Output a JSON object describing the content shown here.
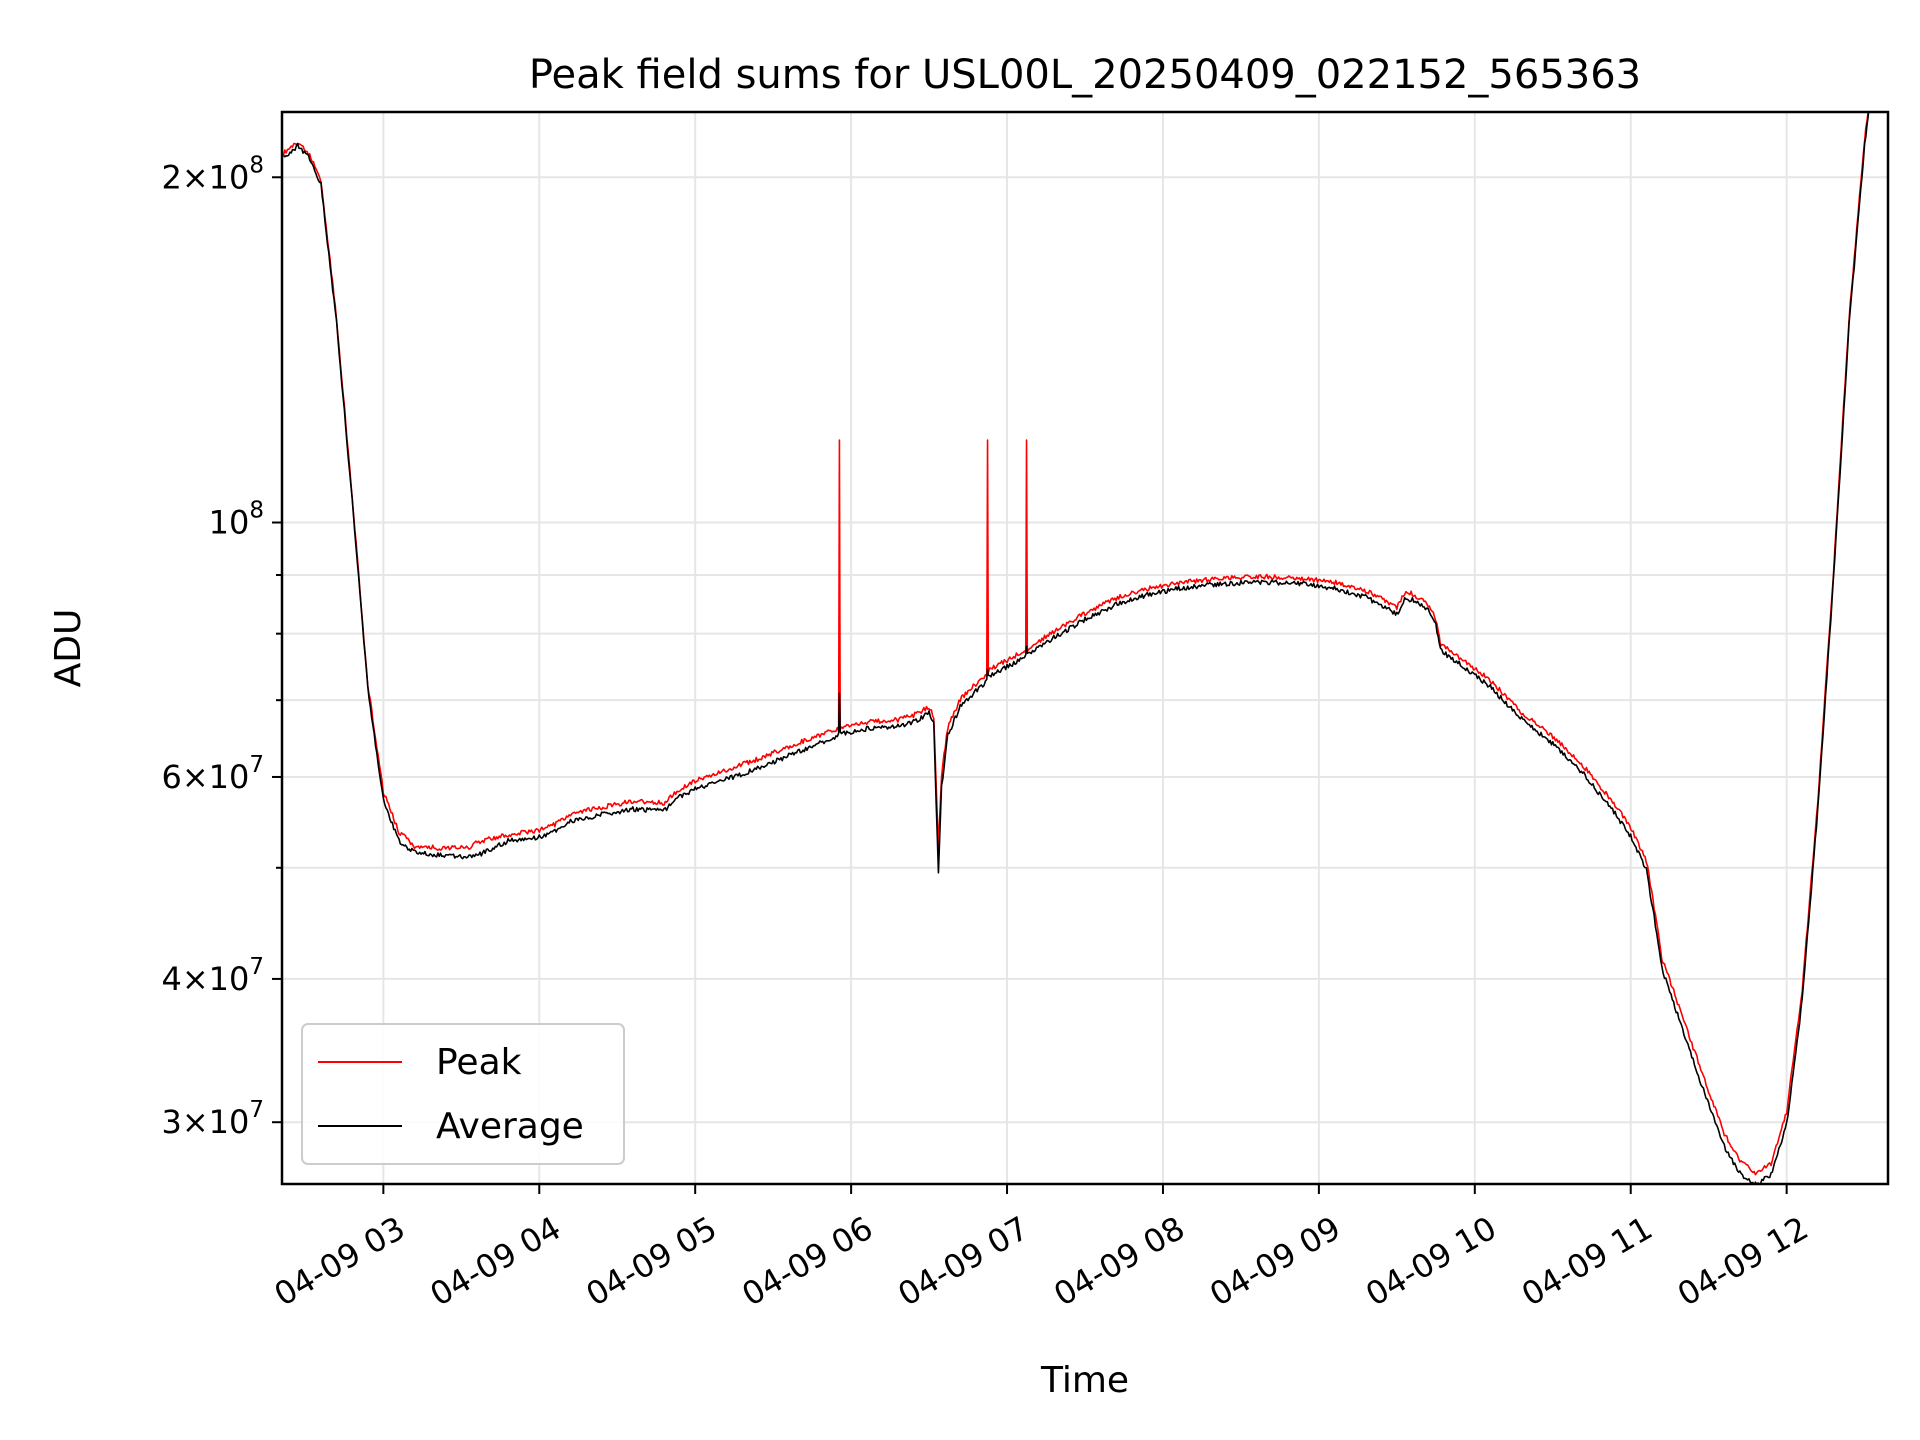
{
  "chart_data": {
    "type": "line",
    "title": "Peak field sums for USL00L_20250409_022152_565363",
    "xlabel": "Time",
    "ylabel": "ADU",
    "yscale": "log",
    "grid": true,
    "legend_position": "lower-left",
    "xlim": [
      2.35,
      12.65
    ],
    "ylim": [
      26500000,
      228000000
    ],
    "x_ticks": [
      {
        "value": 3,
        "label": "04-09 03"
      },
      {
        "value": 4,
        "label": "04-09 04"
      },
      {
        "value": 5,
        "label": "04-09 05"
      },
      {
        "value": 6,
        "label": "04-09 06"
      },
      {
        "value": 7,
        "label": "04-09 07"
      },
      {
        "value": 8,
        "label": "04-09 08"
      },
      {
        "value": 9,
        "label": "04-09 09"
      },
      {
        "value": 10,
        "label": "04-09 10"
      },
      {
        "value": 11,
        "label": "04-09 11"
      },
      {
        "value": 12,
        "label": "04-09 12"
      }
    ],
    "y_major_ticks": [
      {
        "value": 30000000,
        "mant": "3",
        "exp": "7"
      },
      {
        "value": 40000000,
        "mant": "4",
        "exp": "7"
      },
      {
        "value": 60000000,
        "mant": "6",
        "exp": "7"
      },
      {
        "value": 100000000,
        "mant": "",
        "exp": "8"
      },
      {
        "value": 200000000,
        "mant": "2",
        "exp": "8"
      }
    ],
    "y_minor_ticks": [
      50000000,
      70000000,
      80000000,
      90000000
    ],
    "series": [
      {
        "name": "Peak",
        "color": "#ff0000",
        "points": [
          [
            2.36,
            209000000
          ],
          [
            2.45,
            214000000
          ],
          [
            2.52,
            209000000
          ],
          [
            2.6,
            198000000
          ],
          [
            2.7,
            150000000
          ],
          [
            2.8,
            105000000
          ],
          [
            2.9,
            72000000
          ],
          [
            3.0,
            58000000
          ],
          [
            3.1,
            53500000
          ],
          [
            3.2,
            52000000
          ],
          [
            3.35,
            51800000
          ],
          [
            3.55,
            51900000
          ],
          [
            3.62,
            52500000
          ],
          [
            3.8,
            53200000
          ],
          [
            4.0,
            53700000
          ],
          [
            4.1,
            54300000
          ],
          [
            4.2,
            55500000
          ],
          [
            4.4,
            56200000
          ],
          [
            4.6,
            56900000
          ],
          [
            4.8,
            56700000
          ],
          [
            4.9,
            58300000
          ],
          [
            5.0,
            59300000
          ],
          [
            5.2,
            60600000
          ],
          [
            5.4,
            61900000
          ],
          [
            5.6,
            63500000
          ],
          [
            5.8,
            65000000
          ],
          [
            5.92,
            65800000
          ],
          [
            5.925,
            118000000
          ],
          [
            5.93,
            66000000
          ],
          [
            6.1,
            66700000
          ],
          [
            6.3,
            67000000
          ],
          [
            6.4,
            67600000
          ],
          [
            6.5,
            68800000
          ],
          [
            6.53,
            67500000
          ],
          [
            6.56,
            52000000
          ],
          [
            6.58,
            60000000
          ],
          [
            6.62,
            66000000
          ],
          [
            6.7,
            69800000
          ],
          [
            6.8,
            72000000
          ],
          [
            6.87,
            73500000
          ],
          [
            6.875,
            118000000
          ],
          [
            6.88,
            74000000
          ],
          [
            7.0,
            75500000
          ],
          [
            7.12,
            77000000
          ],
          [
            7.125,
            118000000
          ],
          [
            7.13,
            77200000
          ],
          [
            7.3,
            80000000
          ],
          [
            7.5,
            83000000
          ],
          [
            7.7,
            85500000
          ],
          [
            7.9,
            87200000
          ],
          [
            8.1,
            88200000
          ],
          [
            8.3,
            88800000
          ],
          [
            8.5,
            89200000
          ],
          [
            8.7,
            89300000
          ],
          [
            8.9,
            89000000
          ],
          [
            9.1,
            88300000
          ],
          [
            9.3,
            86800000
          ],
          [
            9.45,
            84800000
          ],
          [
            9.5,
            84000000
          ],
          [
            9.55,
            86500000
          ],
          [
            9.6,
            86300000
          ],
          [
            9.7,
            84500000
          ],
          [
            9.75,
            82000000
          ],
          [
            9.78,
            78000000
          ],
          [
            9.9,
            76000000
          ],
          [
            10.1,
            72500000
          ],
          [
            10.3,
            68000000
          ],
          [
            10.5,
            64800000
          ],
          [
            10.7,
            61000000
          ],
          [
            10.9,
            56500000
          ],
          [
            11.0,
            54000000
          ],
          [
            11.1,
            50500000
          ],
          [
            11.15,
            46000000
          ],
          [
            11.2,
            41500000
          ],
          [
            11.3,
            38000000
          ],
          [
            11.4,
            34700000
          ],
          [
            11.5,
            31800000
          ],
          [
            11.6,
            29200000
          ],
          [
            11.7,
            27700000
          ],
          [
            11.8,
            27000000
          ],
          [
            11.9,
            27500000
          ],
          [
            12.0,
            30500000
          ],
          [
            12.1,
            39000000
          ],
          [
            12.2,
            57000000
          ],
          [
            12.3,
            90000000
          ],
          [
            12.4,
            150000000
          ],
          [
            12.5,
            215000000
          ],
          [
            12.53,
            232000000
          ]
        ]
      },
      {
        "name": "Average",
        "color": "#000000",
        "points": [
          [
            2.36,
            209000000
          ],
          [
            2.45,
            214000000
          ],
          [
            2.52,
            209000000
          ],
          [
            2.6,
            198000000
          ],
          [
            2.7,
            150000000
          ],
          [
            2.8,
            105000000
          ],
          [
            2.9,
            72000000
          ],
          [
            3.0,
            57500000
          ],
          [
            3.1,
            53000000
          ],
          [
            3.2,
            51800000
          ],
          [
            3.35,
            51500000
          ],
          [
            3.55,
            51300000
          ],
          [
            3.62,
            51600000
          ],
          [
            3.8,
            53000000
          ],
          [
            4.0,
            53400000
          ],
          [
            4.1,
            54000000
          ],
          [
            4.2,
            55100000
          ],
          [
            4.4,
            55900000
          ],
          [
            4.6,
            56500000
          ],
          [
            4.8,
            56300000
          ],
          [
            4.9,
            57900000
          ],
          [
            5.0,
            58800000
          ],
          [
            5.2,
            60000000
          ],
          [
            5.4,
            61300000
          ],
          [
            5.6,
            62900000
          ],
          [
            5.8,
            64500000
          ],
          [
            5.92,
            65500000
          ],
          [
            5.925,
            71000000
          ],
          [
            5.93,
            65700000
          ],
          [
            6.1,
            66400000
          ],
          [
            6.3,
            66700000
          ],
          [
            6.4,
            67300000
          ],
          [
            6.5,
            68500000
          ],
          [
            6.53,
            67000000
          ],
          [
            6.56,
            49500000
          ],
          [
            6.58,
            59000000
          ],
          [
            6.62,
            65500000
          ],
          [
            6.7,
            69400000
          ],
          [
            6.8,
            71600000
          ],
          [
            6.87,
            73000000
          ],
          [
            6.875,
            74500000
          ],
          [
            6.88,
            73600000
          ],
          [
            7.0,
            75200000
          ],
          [
            7.12,
            76700000
          ],
          [
            7.125,
            78000000
          ],
          [
            7.13,
            76900000
          ],
          [
            7.3,
            79700000
          ],
          [
            7.5,
            82700000
          ],
          [
            7.7,
            85200000
          ],
          [
            7.9,
            86900000
          ],
          [
            8.1,
            88000000
          ],
          [
            8.3,
            88600000
          ],
          [
            8.5,
            89000000
          ],
          [
            8.7,
            89100000
          ],
          [
            8.9,
            88800000
          ],
          [
            9.1,
            88000000
          ],
          [
            9.3,
            86500000
          ],
          [
            9.45,
            84300000
          ],
          [
            9.5,
            83500000
          ],
          [
            9.55,
            86000000
          ],
          [
            9.6,
            86000000
          ],
          [
            9.7,
            84200000
          ],
          [
            9.75,
            81700000
          ],
          [
            9.78,
            77700000
          ],
          [
            9.9,
            75700000
          ],
          [
            10.1,
            72200000
          ],
          [
            10.3,
            67700000
          ],
          [
            10.5,
            64400000
          ],
          [
            10.7,
            60600000
          ],
          [
            10.9,
            56000000
          ],
          [
            11.0,
            53500000
          ],
          [
            11.1,
            50000000
          ],
          [
            11.15,
            45500000
          ],
          [
            11.2,
            41000000
          ],
          [
            11.3,
            37400000
          ],
          [
            11.4,
            34100000
          ],
          [
            11.5,
            31200000
          ],
          [
            11.6,
            28700000
          ],
          [
            11.7,
            27200000
          ],
          [
            11.8,
            26600000
          ],
          [
            11.9,
            27100000
          ],
          [
            12.0,
            30000000
          ],
          [
            12.1,
            38500000
          ],
          [
            12.2,
            56500000
          ],
          [
            12.3,
            89500000
          ],
          [
            12.4,
            149000000
          ],
          [
            12.5,
            214000000
          ],
          [
            12.53,
            232000000
          ]
        ]
      }
    ]
  }
}
